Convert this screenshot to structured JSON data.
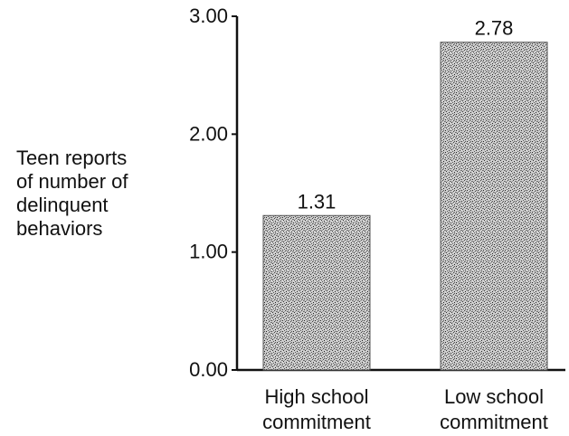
{
  "chart_data": {
    "type": "bar",
    "categories": [
      [
        "High school",
        "commitment"
      ],
      [
        "Low school",
        "commitment"
      ]
    ],
    "values": [
      1.31,
      2.78
    ],
    "data_labels": [
      "1.31",
      "2.78"
    ],
    "title": "",
    "xlabel": "",
    "ylabel_lines": [
      "Teen reports",
      "of number of",
      "delinquent",
      "behaviors"
    ],
    "ylim": [
      0,
      3
    ],
    "yticks": [
      0,
      1,
      2,
      3
    ],
    "ytick_labels": [
      "0.00",
      "1.00",
      "2.00",
      "3.00"
    ],
    "grid": false,
    "bar_fill": "stippled gray"
  }
}
